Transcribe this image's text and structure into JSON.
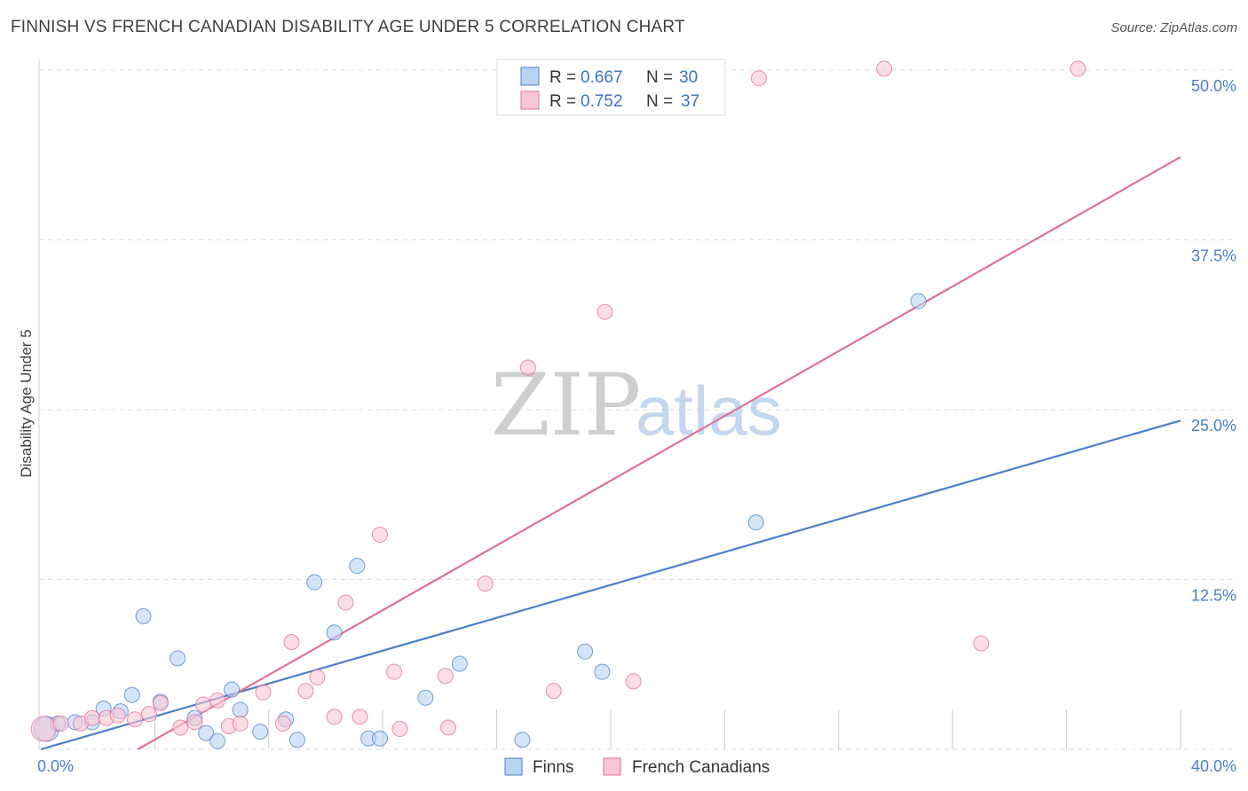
{
  "header": {
    "title": "FINNISH VS FRENCH CANADIAN DISABILITY AGE UNDER 5 CORRELATION CHART",
    "source": "Source: ZipAtlas.com"
  },
  "watermark": {
    "zip": "ZIP",
    "atlas": "atlas"
  },
  "colors": {
    "finns": "#4a80c8",
    "finns_fill": "#b9d3f3",
    "french": "#e0709a",
    "french_fill": "#f8c6d5",
    "grid": "#dddddd",
    "tick_label": "#4a80c8"
  },
  "legend": {
    "rows": [
      {
        "r_label": "R =",
        "r_value": "0.667",
        "n_label": "N =",
        "n_value": "30"
      },
      {
        "r_label": "R =",
        "r_value": "0.752",
        "n_label": "N =",
        "n_value": "37"
      }
    ]
  },
  "bottom_legend": {
    "finns": "Finns",
    "french": "French Canadians"
  },
  "chart_data": {
    "type": "scatter",
    "title": "FINNISH VS FRENCH CANADIAN DISABILITY AGE UNDER 5 CORRELATION CHART",
    "xlabel": "",
    "ylabel": "Disability Age Under 5",
    "xlim": [
      0,
      40
    ],
    "ylim": [
      0,
      50
    ],
    "x_tick_labels": [
      {
        "value": 0,
        "label": "0.0%"
      },
      {
        "value": 40,
        "label": "40.0%"
      }
    ],
    "y_tick_labels": [
      {
        "value": 12.5,
        "label": "12.5%"
      },
      {
        "value": 25,
        "label": "25.0%"
      },
      {
        "value": 37.5,
        "label": "37.5%"
      },
      {
        "value": 50,
        "label": "50.0%"
      }
    ],
    "series": [
      {
        "name": "Finns",
        "r": 0.667,
        "n": 30,
        "trend": [
          [
            0,
            0
          ],
          [
            40,
            24.2
          ]
        ],
        "points": [
          [
            0.2,
            1.5
          ],
          [
            0.6,
            1.9
          ],
          [
            1.2,
            2.0
          ],
          [
            1.8,
            2.0
          ],
          [
            2.2,
            3.0
          ],
          [
            2.8,
            2.8
          ],
          [
            3.2,
            4.0
          ],
          [
            3.6,
            9.8
          ],
          [
            4.2,
            3.5
          ],
          [
            4.8,
            6.7
          ],
          [
            5.4,
            2.3
          ],
          [
            5.8,
            1.2
          ],
          [
            6.2,
            0.6
          ],
          [
            6.7,
            4.4
          ],
          [
            7.0,
            2.9
          ],
          [
            7.7,
            1.3
          ],
          [
            8.6,
            2.2
          ],
          [
            9.0,
            0.7
          ],
          [
            9.6,
            12.3
          ],
          [
            10.3,
            8.6
          ],
          [
            11.1,
            13.5
          ],
          [
            11.5,
            0.8
          ],
          [
            11.9,
            0.8
          ],
          [
            13.5,
            3.8
          ],
          [
            14.7,
            6.3
          ],
          [
            16.9,
            0.7
          ],
          [
            19.1,
            7.2
          ],
          [
            19.7,
            5.7
          ],
          [
            25.1,
            16.7
          ],
          [
            30.8,
            33.0
          ]
        ]
      },
      {
        "name": "French Canadians",
        "r": 0.752,
        "n": 37,
        "trend": [
          [
            3.4,
            0
          ],
          [
            40,
            43.6
          ]
        ],
        "points": [
          [
            0.1,
            1.5
          ],
          [
            0.7,
            1.9
          ],
          [
            1.4,
            1.9
          ],
          [
            1.8,
            2.3
          ],
          [
            2.3,
            2.3
          ],
          [
            2.7,
            2.5
          ],
          [
            3.3,
            2.2
          ],
          [
            3.8,
            2.6
          ],
          [
            4.2,
            3.4
          ],
          [
            4.9,
            1.6
          ],
          [
            5.4,
            2.0
          ],
          [
            5.7,
            3.3
          ],
          [
            6.2,
            3.6
          ],
          [
            6.6,
            1.7
          ],
          [
            7.0,
            1.9
          ],
          [
            7.8,
            4.2
          ],
          [
            8.5,
            1.9
          ],
          [
            8.8,
            7.9
          ],
          [
            9.3,
            4.3
          ],
          [
            9.7,
            5.3
          ],
          [
            10.3,
            2.4
          ],
          [
            10.7,
            10.8
          ],
          [
            11.2,
            2.4
          ],
          [
            11.9,
            15.8
          ],
          [
            12.4,
            5.7
          ],
          [
            12.6,
            1.5
          ],
          [
            14.2,
            5.4
          ],
          [
            14.3,
            1.6
          ],
          [
            15.6,
            12.2
          ],
          [
            17.1,
            28.1
          ],
          [
            18.0,
            4.3
          ],
          [
            19.8,
            32.2
          ],
          [
            20.8,
            5.0
          ],
          [
            25.2,
            49.4
          ],
          [
            29.6,
            50.1
          ],
          [
            33.0,
            7.8
          ],
          [
            36.4,
            50.1
          ]
        ]
      }
    ]
  }
}
